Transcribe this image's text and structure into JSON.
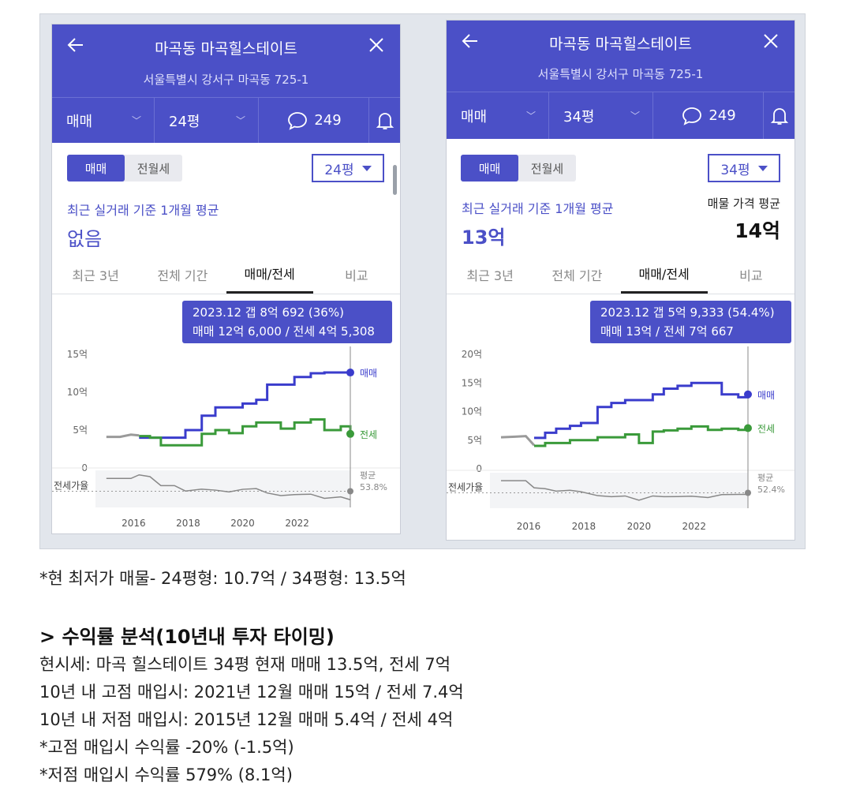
{
  "panels": [
    {
      "title": "마곡동 마곡힐스테이트",
      "address": "서울특별시 강서구 마곡동 725-1",
      "trade_type": "매매",
      "size": "24평",
      "comments": "249",
      "toggle": [
        "매매",
        "전월세"
      ],
      "size_select": "24평",
      "avg_label": "최근 실거래 기준 1개월 평균",
      "avg_value": "없음",
      "listing_label": "",
      "listing_value": "",
      "tabs": [
        "최근 3년",
        "전체 기간",
        "매매/전세",
        "비교"
      ],
      "active_tab": 2,
      "tooltip_line1": "2023.12  갭 8억 692 (36%)",
      "tooltip_line2": "매매 12억 6,000 / 전세 4억 5,308",
      "y_ticks": [
        "15억",
        "10억",
        "5억",
        "0"
      ],
      "x_ticks": [
        "2016",
        "2018",
        "2020",
        "2022"
      ],
      "series_sale": "매매",
      "series_jeonse": "전세",
      "ratio_label": "전세가율",
      "avg_caption": "평균",
      "avg_ratio": "53.8%"
    },
    {
      "title": "마곡동 마곡힐스테이트",
      "address": "서울특별시 강서구 마곡동 725-1",
      "trade_type": "매매",
      "size": "34평",
      "comments": "249",
      "toggle": [
        "매매",
        "전월세"
      ],
      "size_select": "34평",
      "avg_label": "최근 실거래 기준 1개월 평균",
      "avg_value": "13억",
      "listing_label": "매물 가격 평균",
      "listing_value": "14억",
      "tabs": [
        "최근 3년",
        "전체 기간",
        "매매/전세",
        "비교"
      ],
      "active_tab": 2,
      "tooltip_line1": "2023.12  갭 5억 9,333 (54.4%)",
      "tooltip_line2": "매매 13억 / 전세 7억 667",
      "y_ticks": [
        "20억",
        "15억",
        "10억",
        "5억",
        "0"
      ],
      "x_ticks": [
        "2016",
        "2018",
        "2020",
        "2022"
      ],
      "series_sale": "매매",
      "series_jeonse": "전세",
      "ratio_label": "전세가율",
      "avg_caption": "평균",
      "avg_ratio": "52.4%"
    }
  ],
  "colors": {
    "header": "#4b50c7",
    "sale": "#3a3ccc",
    "jeonse": "#3a9a3a",
    "ratio": "#888888"
  },
  "chart_data": [
    {
      "type": "line",
      "x": [
        2015.0,
        2015.5,
        2015.9,
        2016.2,
        2016.6,
        2017.0,
        2017.5,
        2017.9,
        2018.5,
        2019.0,
        2019.5,
        2020.0,
        2020.5,
        2020.9,
        2021.4,
        2021.9,
        2022.5,
        2023.0,
        2023.6,
        2023.95
      ],
      "series": [
        {
          "name": "매매",
          "values": [
            null,
            null,
            null,
            4.0,
            4.0,
            4.0,
            4.0,
            5.0,
            6.9,
            8.0,
            8.0,
            8.5,
            9.0,
            11.0,
            11.0,
            12.0,
            12.5,
            12.6,
            12.6,
            12.6
          ]
        },
        {
          "name": "전세",
          "values": [
            4.0,
            4.0,
            4.3,
            4.2,
            4.0,
            3.0,
            3.0,
            3.0,
            4.5,
            5.0,
            4.6,
            5.5,
            6.0,
            6.0,
            5.2,
            6.0,
            6.4,
            5.0,
            5.5,
            4.5
          ]
        }
      ],
      "ylim": [
        0,
        15
      ]
    },
    {
      "type": "line",
      "x": [
        2015.0,
        2015.5,
        2015.9,
        2016.2,
        2016.6,
        2017.0,
        2017.5,
        2017.9,
        2018.5,
        2019.0,
        2019.5,
        2020.0,
        2020.5,
        2020.9,
        2021.4,
        2021.9,
        2022.5,
        2023.0,
        2023.6,
        2023.95
      ],
      "series": [
        {
          "name": "매매",
          "values": [
            null,
            null,
            null,
            5.4,
            6.3,
            7.0,
            7.5,
            8.0,
            10.8,
            11.5,
            12.0,
            12.0,
            13.0,
            14.0,
            14.5,
            15.0,
            15.0,
            13.0,
            12.5,
            13.0
          ]
        },
        {
          "name": "전세",
          "values": [
            5.4,
            5.5,
            5.6,
            4.0,
            4.5,
            4.5,
            5.0,
            5.0,
            5.5,
            5.5,
            6.0,
            4.5,
            6.5,
            6.7,
            7.0,
            7.4,
            6.8,
            7.0,
            6.8,
            7.1
          ]
        }
      ],
      "ylim": [
        0,
        20
      ]
    }
  ],
  "notes": {
    "lowest": "*현 최저가 매물- 24평형: 10.7억 / 34평형: 13.5억",
    "section_title": "> 수익률 분석(10년내 투자 타이밍)",
    "lines": [
      "현시세: 마곡 힐스테이트 34평 현재 매매 13.5억, 전세 7억",
      "10년 내 고점 매입시: 2021년 12월 매매 15억 / 전세 7.4억",
      "10년 내 저점 매입시: 2015년 12월 매매 5.4억 / 전세 4억",
      "*고점 매입시 수익률 -20% (-1.5억)",
      "*저점 매입시 수익률 579% (8.1억)"
    ]
  }
}
